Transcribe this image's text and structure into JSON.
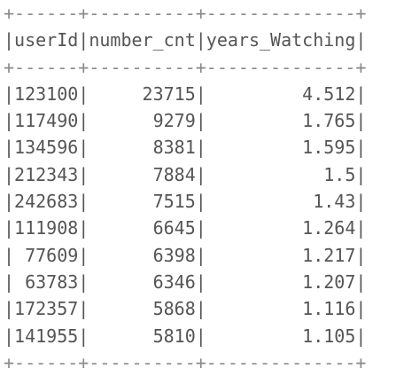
{
  "border_line": "+------+----------+--------------+",
  "header_line": "|userId|number_cnt|years_Watching|",
  "rows": [
    "|123100|     23715|         4.512|",
    "|117490|      9279|         1.765|",
    "|134596|      8381|         1.595|",
    "|212343|      7884|           1.5|",
    "|242683|      7515|          1.43|",
    "|111908|      6645|         1.264|",
    "| 77609|      6398|         1.217|",
    "| 63783|      6346|         1.207|",
    "|172357|      5868|         1.116|",
    "|141955|      5810|         1.105|"
  ],
  "columns": [
    "userId",
    "number_cnt",
    "years_Watching"
  ],
  "colors": {
    "text": "#555555",
    "background": "#ffffff"
  }
}
